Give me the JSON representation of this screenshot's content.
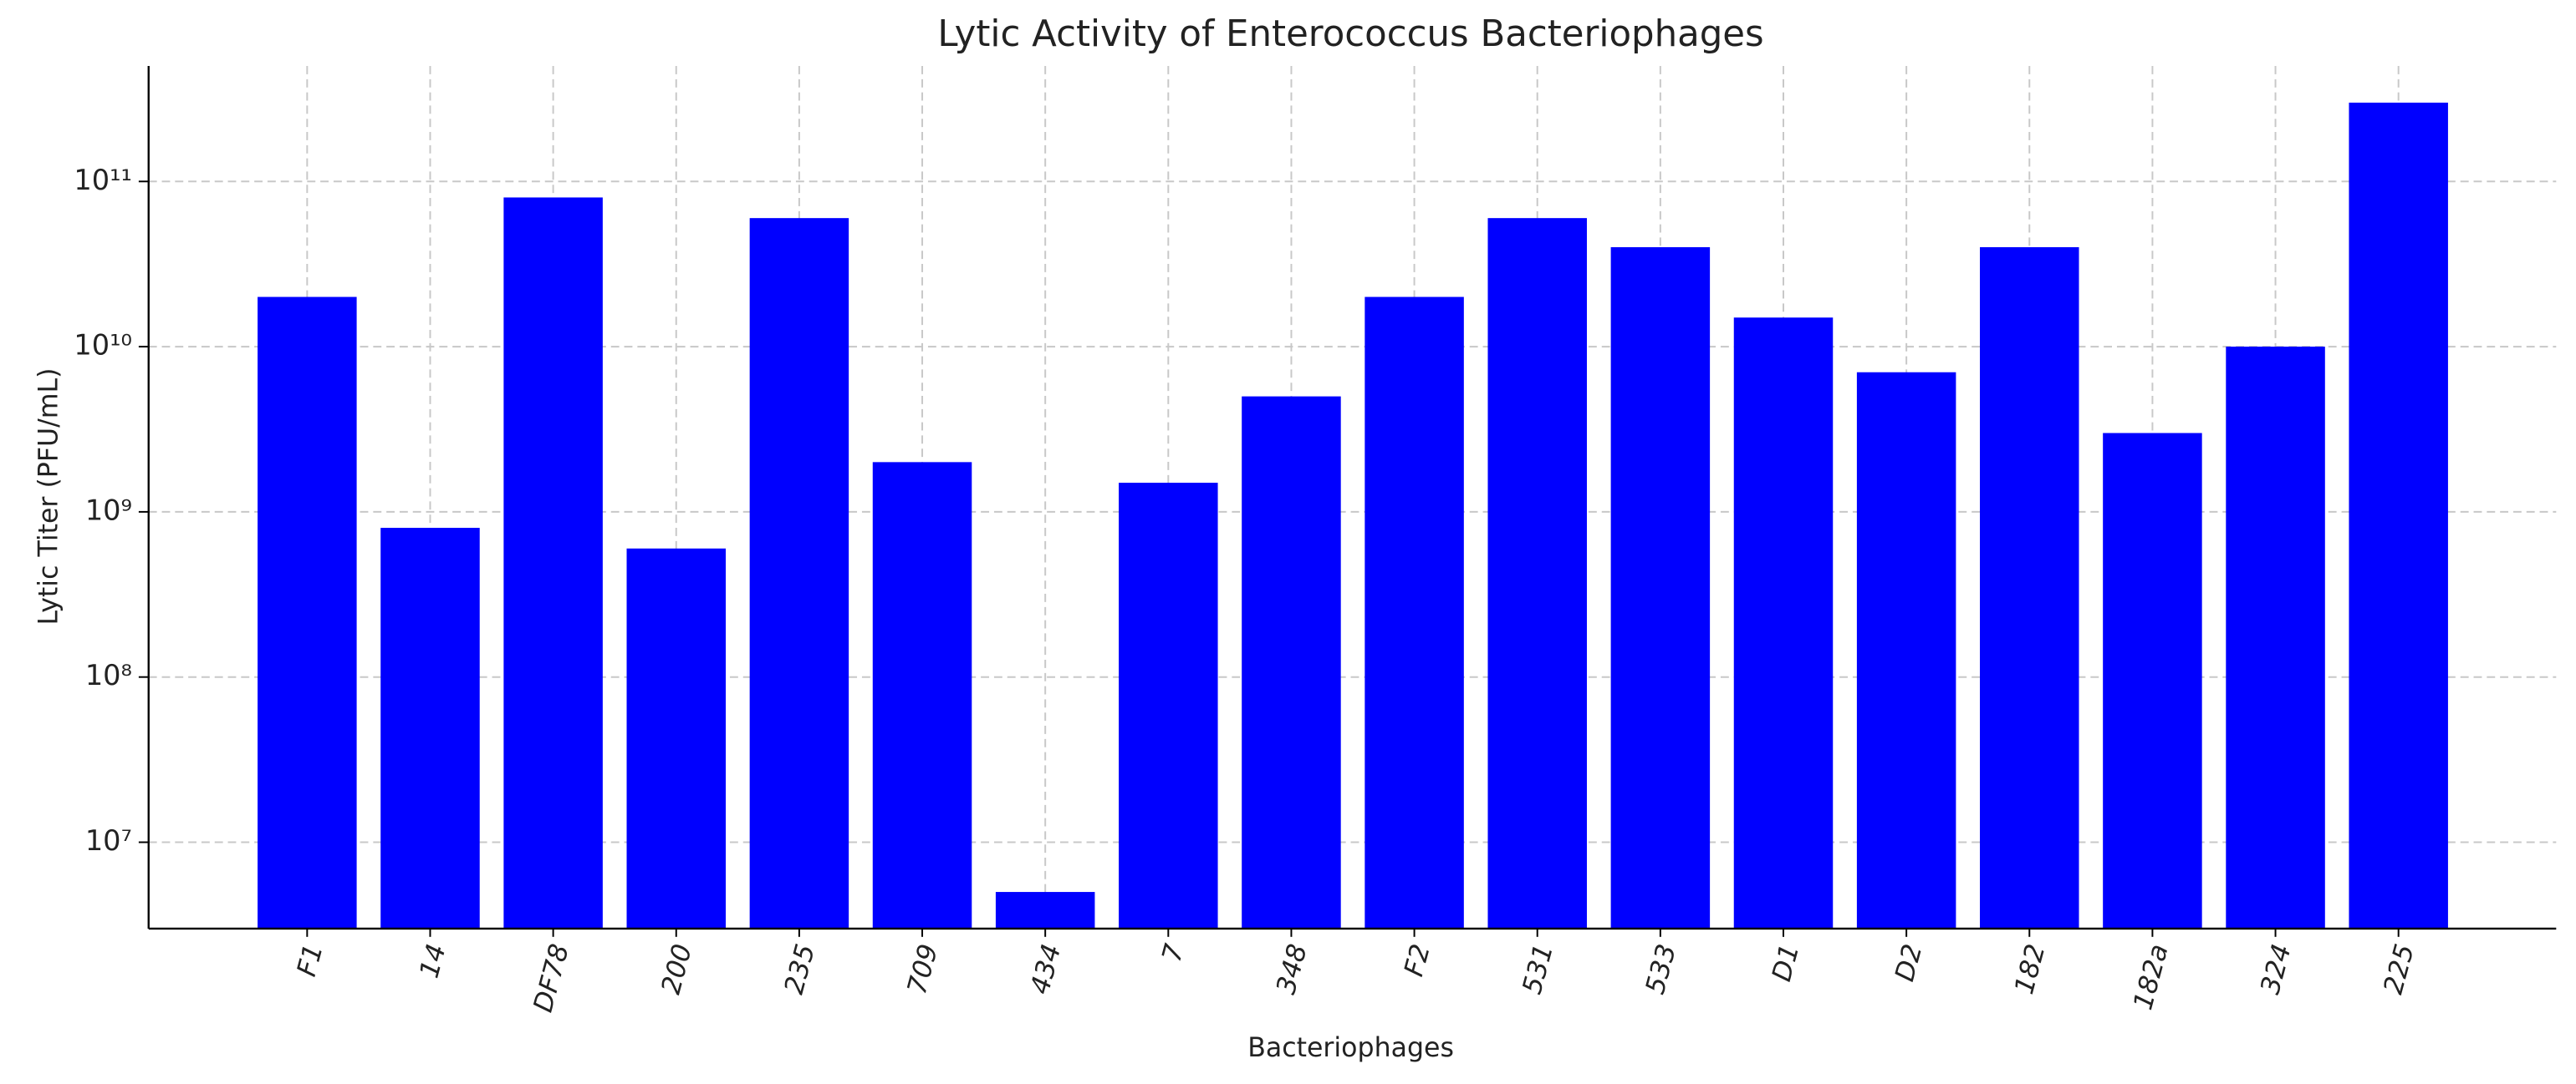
{
  "chart_data": {
    "type": "bar",
    "title": "Lytic Activity of Enterococcus Bacteriophages",
    "x_label": "Bacteriophages",
    "y_label": "Lytic Titer (PFU/mL)",
    "categories": [
      "F1",
      "14",
      "DF78",
      "200",
      "235",
      "709",
      "434",
      "7",
      "348",
      "F2",
      "531",
      "533",
      "D1",
      "D2",
      "182",
      "182a",
      "324",
      "225"
    ],
    "values": [
      20000000000,
      800000000,
      80000000000,
      600000000,
      60000000000,
      2000000000,
      5000000,
      1500000000,
      5000000000,
      20000000000,
      60000000000,
      40000000000,
      15000000000,
      7000000000,
      40000000000,
      3000000000,
      10000000000,
      300000000000
    ],
    "color": "#0000ff",
    "log_scale": true,
    "grid": true,
    "ylim": [
      3000000,
      500000000000
    ],
    "yticks": [
      {
        "value": 10000000,
        "label": "10⁷"
      },
      {
        "value": 100000000,
        "label": "10⁸"
      },
      {
        "value": 1000000000,
        "label": "10⁹"
      },
      {
        "value": 10000000000,
        "label": "10¹⁰"
      },
      {
        "value": 100000000000,
        "label": "10¹¹"
      }
    ]
  }
}
